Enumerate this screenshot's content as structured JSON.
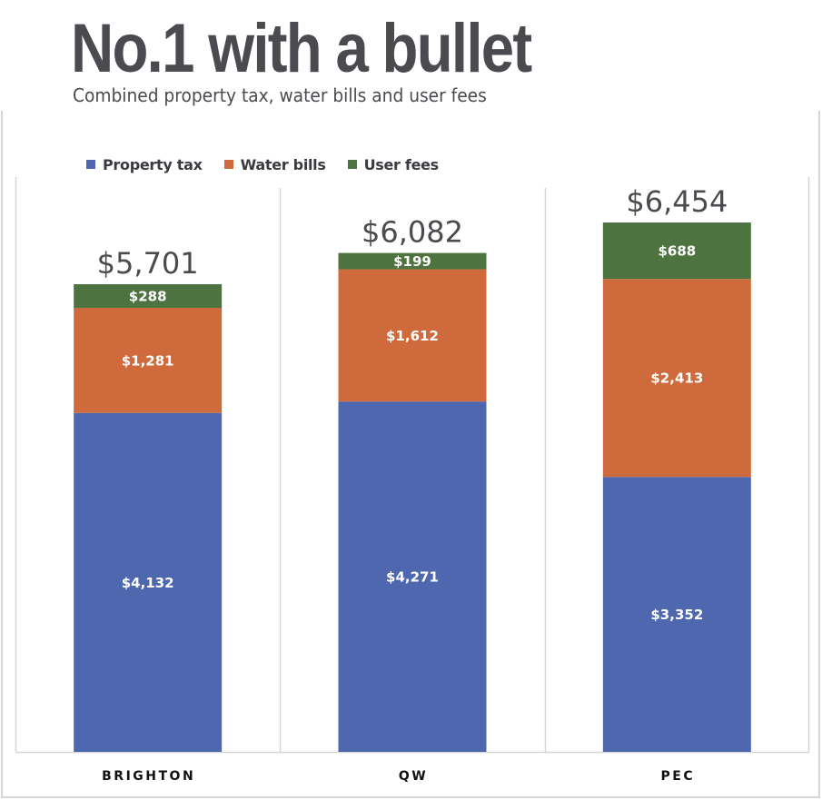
{
  "header": {
    "title": "No.1 with a bullet",
    "subtitle": "Combined property tax, water bills and user fees"
  },
  "chart_data": {
    "type": "bar",
    "stacked": true,
    "title": "No.1 with a bullet",
    "subtitle": "Combined property tax, water bills and user fees",
    "xlabel": "",
    "ylabel": "",
    "categories": [
      "BRIGHTON",
      "QW",
      "PEC"
    ],
    "series": [
      {
        "name": "Property tax",
        "color": "#4f67af",
        "values": [
          4132,
          4271,
          3352
        ],
        "labels": [
          "$4,132",
          "$4,271",
          "$3,352"
        ]
      },
      {
        "name": "Water bills",
        "color": "#cf6a3c",
        "values": [
          1281,
          1612,
          2413
        ],
        "labels": [
          "$1,281",
          "$1,612",
          "$2,413"
        ]
      },
      {
        "name": "User fees",
        "color": "#4d7340",
        "values": [
          288,
          199,
          688
        ],
        "labels": [
          "$288",
          "$199",
          "$688"
        ]
      }
    ],
    "totals": [
      5701,
      6082,
      6454
    ],
    "total_labels": [
      "$5,701",
      "$6,082",
      "$6,454"
    ],
    "ylim": [
      0,
      7000
    ],
    "grid": false,
    "legend": "top-left"
  }
}
